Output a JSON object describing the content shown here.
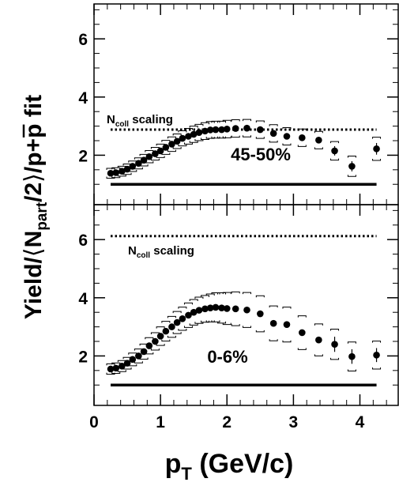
{
  "chart_data": [
    {
      "type": "scatter",
      "panel": "top",
      "centrality_label": "45-50%",
      "scaling_label_main": "N",
      "scaling_label_sub": "coll",
      "scaling_label_rest": " scaling",
      "ncoll_level": 2.88,
      "reference_level": 1.0,
      "xlim": [
        0,
        4.6
      ],
      "ylim": [
        0.3,
        7.2
      ],
      "yticks": [
        2,
        4,
        6
      ],
      "y_tick_labels": [
        "2",
        "4",
        "6"
      ],
      "series": [
        {
          "x": [
            0.25,
            0.33,
            0.42,
            0.5,
            0.58,
            0.67,
            0.75,
            0.83,
            0.92,
            1.0,
            1.08,
            1.17,
            1.25,
            1.33,
            1.42,
            1.5,
            1.58,
            1.67,
            1.75,
            1.83,
            1.92,
            2.0,
            2.13,
            2.3,
            2.5,
            2.7,
            2.9,
            3.13,
            3.38,
            3.62,
            3.88,
            4.25
          ],
          "y": [
            1.38,
            1.4,
            1.45,
            1.52,
            1.62,
            1.72,
            1.83,
            1.95,
            2.05,
            2.15,
            2.27,
            2.38,
            2.48,
            2.58,
            2.65,
            2.72,
            2.78,
            2.83,
            2.87,
            2.88,
            2.88,
            2.9,
            2.92,
            2.93,
            2.88,
            2.75,
            2.65,
            2.6,
            2.52,
            2.15,
            1.62,
            2.22
          ],
          "err": [
            0.17,
            0.17,
            0.17,
            0.18,
            0.18,
            0.19,
            0.2,
            0.21,
            0.22,
            0.23,
            0.24,
            0.25,
            0.25,
            0.26,
            0.27,
            0.28,
            0.28,
            0.29,
            0.29,
            0.29,
            0.29,
            0.3,
            0.3,
            0.3,
            0.3,
            0.3,
            0.3,
            0.3,
            0.3,
            0.32,
            0.35,
            0.4
          ]
        }
      ]
    },
    {
      "type": "scatter",
      "panel": "bottom",
      "centrality_label": "0-6%",
      "scaling_label_main": "N",
      "scaling_label_sub": "coll",
      "scaling_label_rest": " scaling",
      "ncoll_level": 6.12,
      "reference_level": 1.0,
      "xlim": [
        0,
        4.6
      ],
      "ylim": [
        0.3,
        7.2
      ],
      "yticks": [
        2,
        4,
        6
      ],
      "y_tick_labels": [
        "2",
        "4",
        "6"
      ],
      "series": [
        {
          "x": [
            0.25,
            0.33,
            0.42,
            0.5,
            0.58,
            0.67,
            0.75,
            0.83,
            0.92,
            1.0,
            1.08,
            1.17,
            1.25,
            1.33,
            1.42,
            1.5,
            1.58,
            1.67,
            1.75,
            1.83,
            1.92,
            2.0,
            2.13,
            2.3,
            2.5,
            2.7,
            2.9,
            3.13,
            3.38,
            3.62,
            3.88,
            4.25
          ],
          "y": [
            1.55,
            1.58,
            1.65,
            1.75,
            1.88,
            2.0,
            2.15,
            2.35,
            2.5,
            2.68,
            2.85,
            3.0,
            3.15,
            3.28,
            3.4,
            3.5,
            3.57,
            3.62,
            3.65,
            3.67,
            3.65,
            3.63,
            3.62,
            3.58,
            3.45,
            3.12,
            3.08,
            2.8,
            2.55,
            2.4,
            1.98,
            2.03
          ],
          "err": [
            0.18,
            0.18,
            0.19,
            0.2,
            0.22,
            0.24,
            0.26,
            0.28,
            0.3,
            0.32,
            0.34,
            0.36,
            0.38,
            0.4,
            0.42,
            0.44,
            0.45,
            0.46,
            0.48,
            0.5,
            0.52,
            0.55,
            0.58,
            0.6,
            0.62,
            0.6,
            0.6,
            0.58,
            0.55,
            0.52,
            0.5,
            0.48
          ]
        }
      ]
    }
  ],
  "x_tick_labels": [
    "0",
    "1",
    "2",
    "3",
    "4"
  ],
  "xticks": [
    0,
    1,
    2,
    3,
    4
  ],
  "xlabel_main": "p",
  "xlabel_sub": "T",
  "xlabel_rest": " (GeV/c)",
  "ylabel_part1": "Yield/",
  "ylabel_langle": "⟨",
  "ylabel_N": "N",
  "ylabel_sub": "part",
  "ylabel_part2": "/2",
  "ylabel_rangle": "⟩",
  "ylabel_part3": "/p+",
  "ylabel_pbar": "p",
  "ylabel_part4": " fit",
  "colors": {
    "marker": "#000000",
    "axis": "#000000",
    "background": "#ffffff"
  }
}
